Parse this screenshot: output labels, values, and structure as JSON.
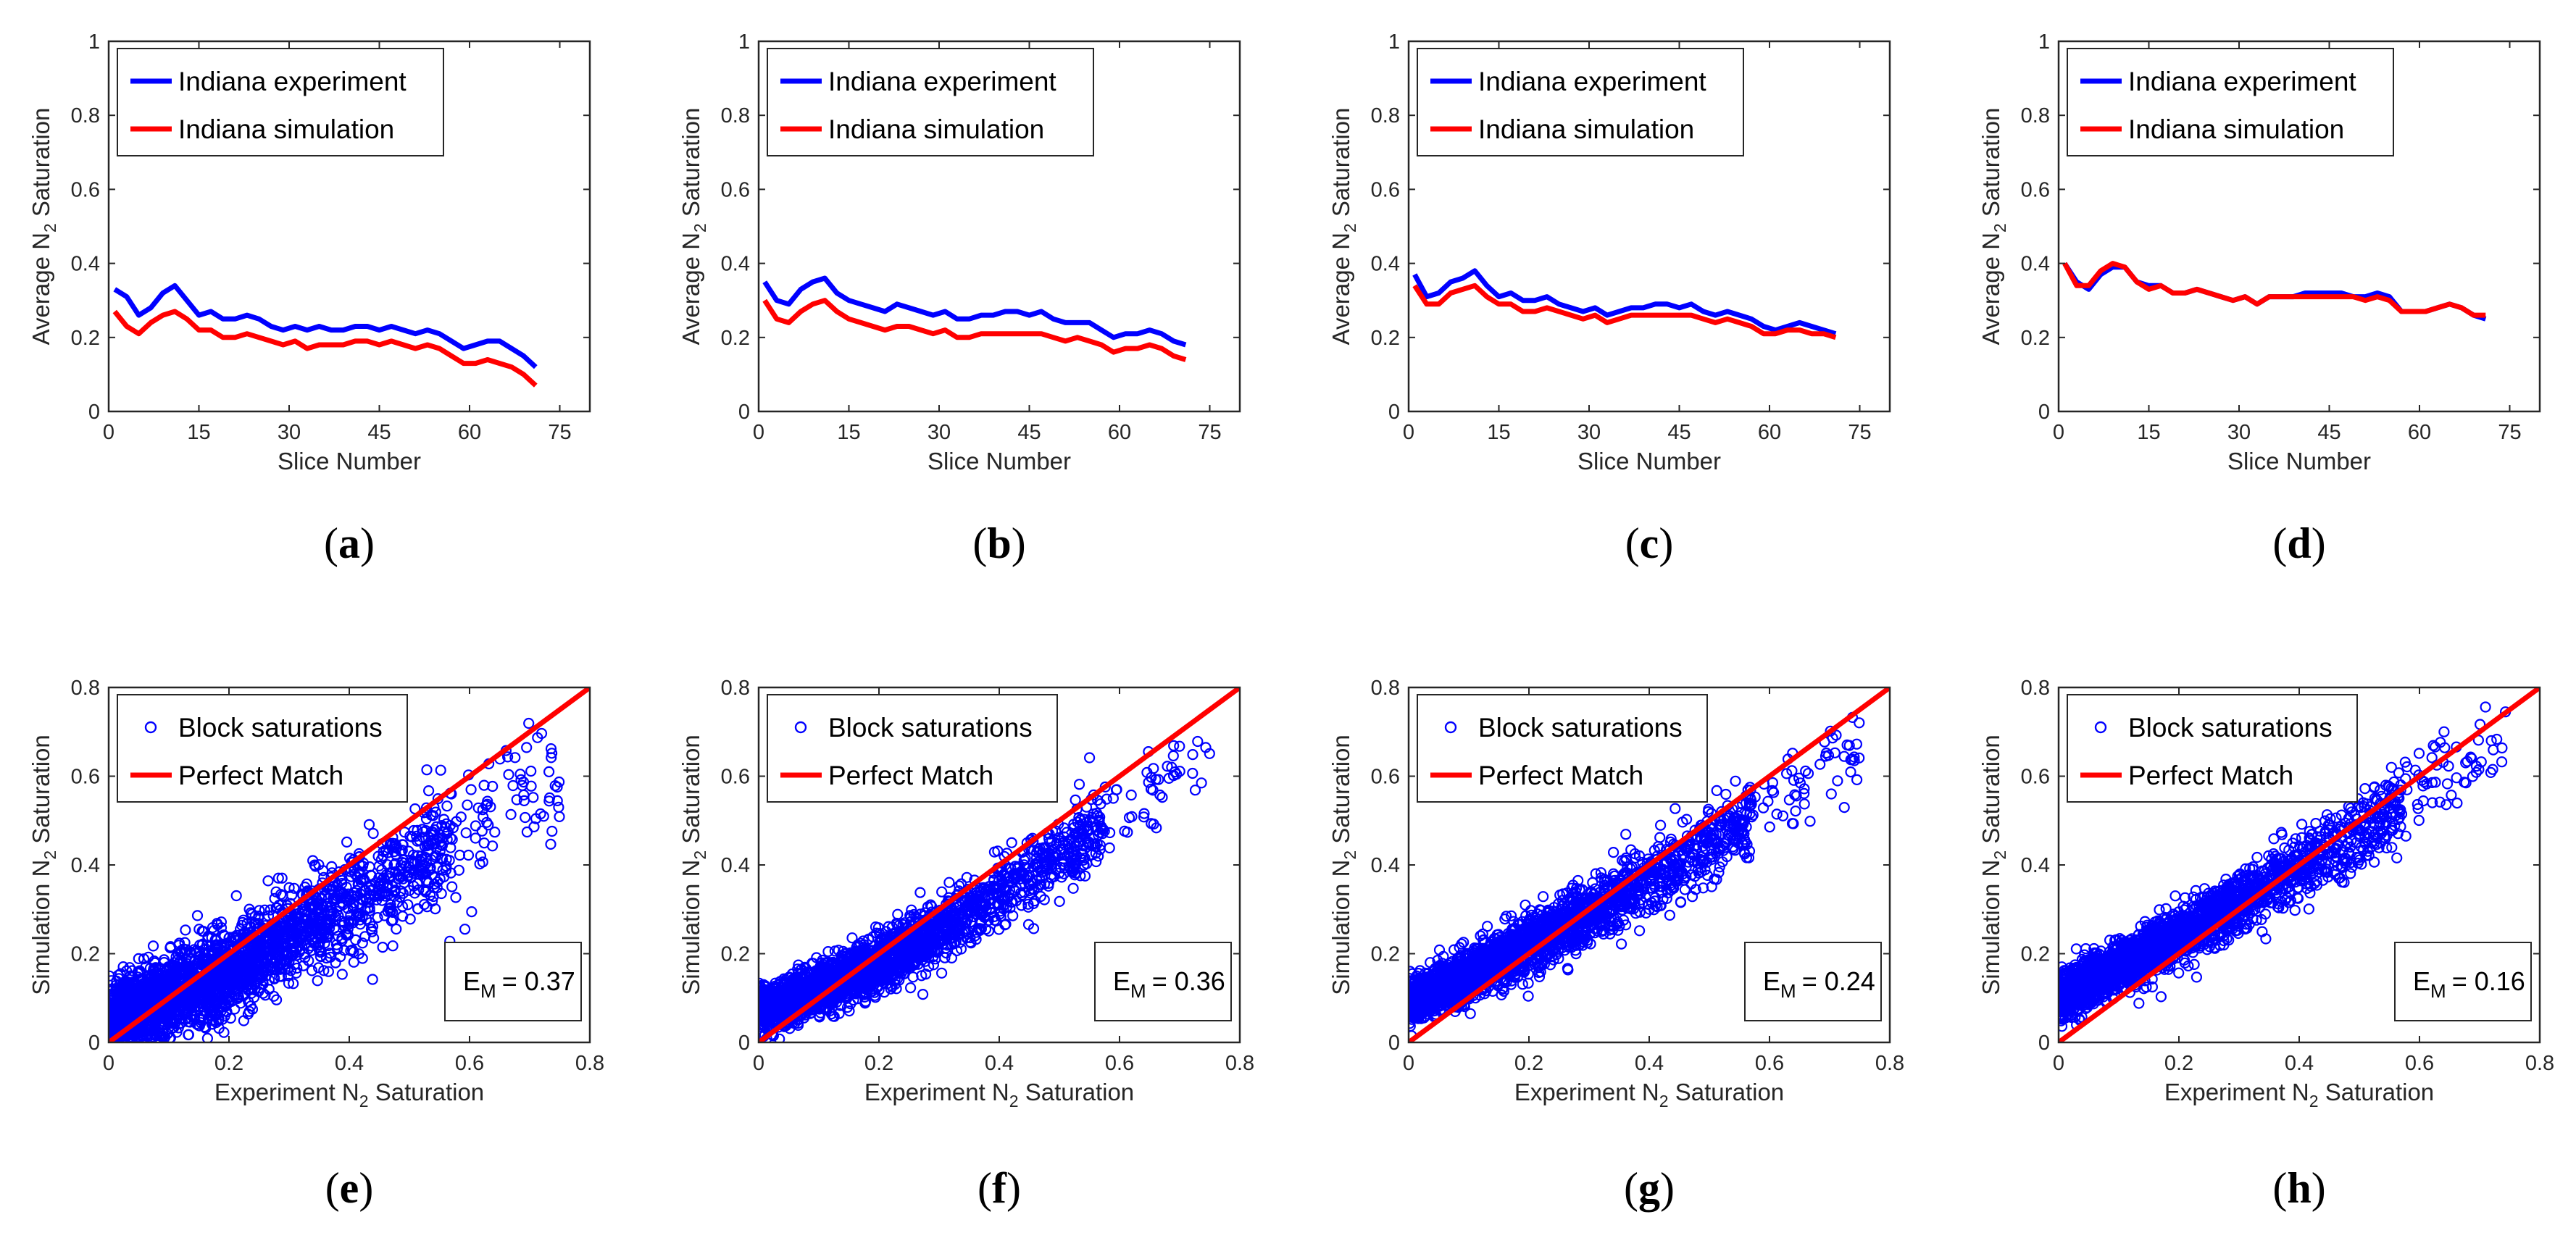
{
  "chart_data": [
    {
      "type": "line",
      "panel": "a",
      "caption_letter": "a",
      "xlabel": "Slice Number",
      "ylabel": "Average N2 Saturation",
      "xlim": [
        0,
        80
      ],
      "ylim": [
        0,
        1
      ],
      "xticks": [
        "0",
        "15",
        "30",
        "45",
        "60",
        "75"
      ],
      "yticks": [
        "0",
        "0.2",
        "0.4",
        "0.6",
        "0.8",
        "1"
      ],
      "legend_position": "top-left",
      "grid": false,
      "series": [
        {
          "name": "Indiana experiment",
          "color": "#0000ff",
          "x": [
            1,
            3,
            5,
            7,
            9,
            11,
            13,
            15,
            17,
            19,
            21,
            23,
            25,
            27,
            29,
            31,
            33,
            35,
            37,
            39,
            41,
            43,
            45,
            47,
            49,
            51,
            53,
            55,
            57,
            59,
            61,
            63,
            65,
            67,
            69,
            71
          ],
          "values": [
            0.33,
            0.31,
            0.26,
            0.28,
            0.32,
            0.34,
            0.3,
            0.26,
            0.27,
            0.25,
            0.25,
            0.26,
            0.25,
            0.23,
            0.22,
            0.23,
            0.22,
            0.23,
            0.22,
            0.22,
            0.23,
            0.23,
            0.22,
            0.23,
            0.22,
            0.21,
            0.22,
            0.21,
            0.19,
            0.17,
            0.18,
            0.19,
            0.19,
            0.17,
            0.15,
            0.12
          ]
        },
        {
          "name": "Indiana simulation",
          "color": "#ff0000",
          "x": [
            1,
            3,
            5,
            7,
            9,
            11,
            13,
            15,
            17,
            19,
            21,
            23,
            25,
            27,
            29,
            31,
            33,
            35,
            37,
            39,
            41,
            43,
            45,
            47,
            49,
            51,
            53,
            55,
            57,
            59,
            61,
            63,
            65,
            67,
            69,
            71
          ],
          "values": [
            0.27,
            0.23,
            0.21,
            0.24,
            0.26,
            0.27,
            0.25,
            0.22,
            0.22,
            0.2,
            0.2,
            0.21,
            0.2,
            0.19,
            0.18,
            0.19,
            0.17,
            0.18,
            0.18,
            0.18,
            0.19,
            0.19,
            0.18,
            0.19,
            0.18,
            0.17,
            0.18,
            0.17,
            0.15,
            0.13,
            0.13,
            0.14,
            0.13,
            0.12,
            0.1,
            0.07
          ]
        }
      ]
    },
    {
      "type": "line",
      "panel": "b",
      "caption_letter": "b",
      "xlabel": "Slice Number",
      "ylabel": "Average N2 Saturation",
      "xlim": [
        0,
        80
      ],
      "ylim": [
        0,
        1
      ],
      "xticks": [
        "0",
        "15",
        "30",
        "45",
        "60",
        "75"
      ],
      "yticks": [
        "0",
        "0.2",
        "0.4",
        "0.6",
        "0.8",
        "1"
      ],
      "legend_position": "top-left",
      "grid": false,
      "series": [
        {
          "name": "Indiana experiment",
          "color": "#0000ff",
          "x": [
            1,
            3,
            5,
            7,
            9,
            11,
            13,
            15,
            17,
            19,
            21,
            23,
            25,
            27,
            29,
            31,
            33,
            35,
            37,
            39,
            41,
            43,
            45,
            47,
            49,
            51,
            53,
            55,
            57,
            59,
            61,
            63,
            65,
            67,
            69,
            71
          ],
          "values": [
            0.35,
            0.3,
            0.29,
            0.33,
            0.35,
            0.36,
            0.32,
            0.3,
            0.29,
            0.28,
            0.27,
            0.29,
            0.28,
            0.27,
            0.26,
            0.27,
            0.25,
            0.25,
            0.26,
            0.26,
            0.27,
            0.27,
            0.26,
            0.27,
            0.25,
            0.24,
            0.24,
            0.24,
            0.22,
            0.2,
            0.21,
            0.21,
            0.22,
            0.21,
            0.19,
            0.18
          ]
        },
        {
          "name": "Indiana simulation",
          "color": "#ff0000",
          "x": [
            1,
            3,
            5,
            7,
            9,
            11,
            13,
            15,
            17,
            19,
            21,
            23,
            25,
            27,
            29,
            31,
            33,
            35,
            37,
            39,
            41,
            43,
            45,
            47,
            49,
            51,
            53,
            55,
            57,
            59,
            61,
            63,
            65,
            67,
            69,
            71
          ],
          "values": [
            0.3,
            0.25,
            0.24,
            0.27,
            0.29,
            0.3,
            0.27,
            0.25,
            0.24,
            0.23,
            0.22,
            0.23,
            0.23,
            0.22,
            0.21,
            0.22,
            0.2,
            0.2,
            0.21,
            0.21,
            0.21,
            0.21,
            0.21,
            0.21,
            0.2,
            0.19,
            0.2,
            0.19,
            0.18,
            0.16,
            0.17,
            0.17,
            0.18,
            0.17,
            0.15,
            0.14
          ]
        }
      ]
    },
    {
      "type": "line",
      "panel": "c",
      "caption_letter": "c",
      "xlabel": "Slice Number",
      "ylabel": "Average N2 Saturation",
      "xlim": [
        0,
        80
      ],
      "ylim": [
        0,
        1
      ],
      "xticks": [
        "0",
        "15",
        "30",
        "45",
        "60",
        "75"
      ],
      "yticks": [
        "0",
        "0.2",
        "0.4",
        "0.6",
        "0.8",
        "1"
      ],
      "legend_position": "top-left",
      "grid": false,
      "series": [
        {
          "name": "Indiana experiment",
          "color": "#0000ff",
          "x": [
            1,
            3,
            5,
            7,
            9,
            11,
            13,
            15,
            17,
            19,
            21,
            23,
            25,
            27,
            29,
            31,
            33,
            35,
            37,
            39,
            41,
            43,
            45,
            47,
            49,
            51,
            53,
            55,
            57,
            59,
            61,
            63,
            65,
            67,
            69,
            71
          ],
          "values": [
            0.37,
            0.31,
            0.32,
            0.35,
            0.36,
            0.38,
            0.34,
            0.31,
            0.32,
            0.3,
            0.3,
            0.31,
            0.29,
            0.28,
            0.27,
            0.28,
            0.26,
            0.27,
            0.28,
            0.28,
            0.29,
            0.29,
            0.28,
            0.29,
            0.27,
            0.26,
            0.27,
            0.26,
            0.25,
            0.23,
            0.22,
            0.23,
            0.24,
            0.23,
            0.22,
            0.21
          ]
        },
        {
          "name": "Indiana simulation",
          "color": "#ff0000",
          "x": [
            1,
            3,
            5,
            7,
            9,
            11,
            13,
            15,
            17,
            19,
            21,
            23,
            25,
            27,
            29,
            31,
            33,
            35,
            37,
            39,
            41,
            43,
            45,
            47,
            49,
            51,
            53,
            55,
            57,
            59,
            61,
            63,
            65,
            67,
            69,
            71
          ],
          "values": [
            0.34,
            0.29,
            0.29,
            0.32,
            0.33,
            0.34,
            0.31,
            0.29,
            0.29,
            0.27,
            0.27,
            0.28,
            0.27,
            0.26,
            0.25,
            0.26,
            0.24,
            0.25,
            0.26,
            0.26,
            0.26,
            0.26,
            0.26,
            0.26,
            0.25,
            0.24,
            0.25,
            0.24,
            0.23,
            0.21,
            0.21,
            0.22,
            0.22,
            0.21,
            0.21,
            0.2
          ]
        }
      ]
    },
    {
      "type": "line",
      "panel": "d",
      "caption_letter": "d",
      "xlabel": "Slice Number",
      "ylabel": "Average N2 Saturation",
      "xlim": [
        0,
        80
      ],
      "ylim": [
        0,
        1
      ],
      "xticks": [
        "0",
        "15",
        "30",
        "45",
        "60",
        "75"
      ],
      "yticks": [
        "0",
        "0.2",
        "0.4",
        "0.6",
        "0.8",
        "1"
      ],
      "legend_position": "top-left",
      "grid": false,
      "series": [
        {
          "name": "Indiana experiment",
          "color": "#0000ff",
          "x": [
            1,
            3,
            5,
            7,
            9,
            11,
            13,
            15,
            17,
            19,
            21,
            23,
            25,
            27,
            29,
            31,
            33,
            35,
            37,
            39,
            41,
            43,
            45,
            47,
            49,
            51,
            53,
            55,
            57,
            59,
            61,
            63,
            65,
            67,
            69,
            71
          ],
          "values": [
            0.4,
            0.35,
            0.33,
            0.37,
            0.39,
            0.39,
            0.35,
            0.34,
            0.34,
            0.32,
            0.32,
            0.33,
            0.32,
            0.31,
            0.3,
            0.31,
            0.29,
            0.31,
            0.31,
            0.31,
            0.32,
            0.32,
            0.32,
            0.32,
            0.31,
            0.31,
            0.32,
            0.31,
            0.27,
            0.27,
            0.27,
            0.28,
            0.29,
            0.28,
            0.26,
            0.25
          ]
        },
        {
          "name": "Indiana simulation",
          "color": "#ff0000",
          "x": [
            1,
            3,
            5,
            7,
            9,
            11,
            13,
            15,
            17,
            19,
            21,
            23,
            25,
            27,
            29,
            31,
            33,
            35,
            37,
            39,
            41,
            43,
            45,
            47,
            49,
            51,
            53,
            55,
            57,
            59,
            61,
            63,
            65,
            67,
            69,
            71
          ],
          "values": [
            0.4,
            0.34,
            0.34,
            0.38,
            0.4,
            0.39,
            0.35,
            0.33,
            0.34,
            0.32,
            0.32,
            0.33,
            0.32,
            0.31,
            0.3,
            0.31,
            0.29,
            0.31,
            0.31,
            0.31,
            0.31,
            0.31,
            0.31,
            0.31,
            0.31,
            0.3,
            0.31,
            0.3,
            0.27,
            0.27,
            0.27,
            0.28,
            0.29,
            0.28,
            0.26,
            0.26
          ]
        }
      ]
    },
    {
      "type": "scatter",
      "panel": "e",
      "caption_letter": "e",
      "xlabel": "Experiment N2 Saturation",
      "ylabel": "Simulation N2 Saturation",
      "xlim": [
        0,
        0.8
      ],
      "ylim": [
        0,
        0.8
      ],
      "xticks": [
        "0",
        "0.2",
        "0.4",
        "0.6",
        "0.8"
      ],
      "yticks": [
        "0",
        "0.2",
        "0.4",
        "0.6",
        "0.8"
      ],
      "legend_position": "top-left",
      "grid": false,
      "error_label": "E",
      "error_sub": "M",
      "error_value": "= 0.37",
      "series": [
        {
          "name": "Block saturations",
          "marker": "circle",
          "color": "#0000ff",
          "trend_x": [
            0,
            0.1,
            0.2,
            0.3,
            0.4,
            0.5,
            0.6,
            0.7
          ],
          "trend_y": [
            0.05,
            0.1,
            0.16,
            0.24,
            0.32,
            0.4,
            0.49,
            0.58
          ],
          "spread": 0.055
        },
        {
          "name": "Perfect Match",
          "type": "line",
          "color": "#ff0000",
          "x": [
            0,
            0.8
          ],
          "y": [
            0,
            0.8
          ]
        }
      ]
    },
    {
      "type": "scatter",
      "panel": "f",
      "caption_letter": "f",
      "xlabel": "Experiment N2 Saturation",
      "ylabel": "Simulation N2 Saturation",
      "xlim": [
        0,
        0.8
      ],
      "ylim": [
        0,
        0.8
      ],
      "xticks": [
        "0",
        "0.2",
        "0.4",
        "0.6",
        "0.8"
      ],
      "yticks": [
        "0",
        "0.2",
        "0.4",
        "0.6",
        "0.8"
      ],
      "legend_position": "top-left",
      "grid": false,
      "error_label": "E",
      "error_sub": "M",
      "error_value": "= 0.36",
      "series": [
        {
          "name": "Block saturations",
          "marker": "circle",
          "color": "#0000ff",
          "trend_x": [
            0,
            0.1,
            0.2,
            0.3,
            0.4,
            0.5,
            0.6,
            0.7
          ],
          "trend_y": [
            0.07,
            0.12,
            0.18,
            0.25,
            0.33,
            0.42,
            0.52,
            0.63
          ],
          "spread": 0.035
        },
        {
          "name": "Perfect Match",
          "type": "line",
          "color": "#ff0000",
          "x": [
            0,
            0.8
          ],
          "y": [
            0,
            0.8
          ]
        }
      ]
    },
    {
      "type": "scatter",
      "panel": "g",
      "caption_letter": "g",
      "xlabel": "Experiment N2 Saturation",
      "ylabel": "Simulation N2 Saturation",
      "xlim": [
        0,
        0.8
      ],
      "ylim": [
        0,
        0.8
      ],
      "xticks": [
        "0",
        "0.2",
        "0.4",
        "0.6",
        "0.8"
      ],
      "yticks": [
        "0",
        "0.2",
        "0.4",
        "0.6",
        "0.8"
      ],
      "legend_position": "top-left",
      "grid": false,
      "error_label": "E",
      "error_sub": "M",
      "error_value": "= 0.24",
      "series": [
        {
          "name": "Block saturations",
          "marker": "circle",
          "color": "#0000ff",
          "trend_x": [
            0,
            0.1,
            0.2,
            0.3,
            0.4,
            0.5,
            0.6,
            0.7
          ],
          "trend_y": [
            0.09,
            0.15,
            0.22,
            0.29,
            0.37,
            0.45,
            0.54,
            0.64
          ],
          "spread": 0.035
        },
        {
          "name": "Perfect Match",
          "type": "line",
          "color": "#ff0000",
          "x": [
            0,
            0.8
          ],
          "y": [
            0,
            0.8
          ]
        }
      ]
    },
    {
      "type": "scatter",
      "panel": "h",
      "caption_letter": "h",
      "xlabel": "Experiment N2 Saturation",
      "ylabel": "Simulation N2 Saturation",
      "xlim": [
        0,
        0.8
      ],
      "ylim": [
        0,
        0.8
      ],
      "xticks": [
        "0",
        "0.2",
        "0.4",
        "0.6",
        "0.8"
      ],
      "yticks": [
        "0",
        "0.2",
        "0.4",
        "0.6",
        "0.8"
      ],
      "legend_position": "top-left",
      "grid": false,
      "error_label": "E",
      "error_sub": "M",
      "error_value": "= 0.16",
      "series": [
        {
          "name": "Block saturations",
          "marker": "circle",
          "color": "#0000ff",
          "trend_x": [
            0,
            0.1,
            0.2,
            0.3,
            0.4,
            0.5,
            0.6,
            0.7
          ],
          "trend_y": [
            0.1,
            0.17,
            0.24,
            0.32,
            0.39,
            0.47,
            0.56,
            0.66
          ],
          "spread": 0.035
        },
        {
          "name": "Perfect Match",
          "type": "line",
          "color": "#ff0000",
          "x": [
            0,
            0.8
          ],
          "y": [
            0,
            0.8
          ]
        }
      ]
    }
  ]
}
